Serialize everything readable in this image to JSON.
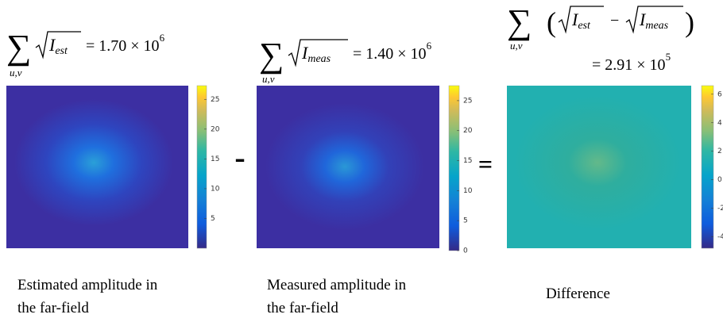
{
  "panels": [
    {
      "equation": {
        "sum": "∑",
        "sum_sub": "u,v",
        "var": "I",
        "var_sub": "est",
        "rhs": "= 1.70 × 10",
        "exponent": "6"
      },
      "colorbar": {
        "clim": [
          0,
          27.3
        ],
        "ticks": [
          5,
          10,
          15,
          20,
          25
        ]
      },
      "caption": [
        "Estimated amplitude in",
        "the far-field"
      ]
    },
    {
      "equation": {
        "sum": "∑",
        "sum_sub": "u,v",
        "var": "I",
        "var_sub": "meas",
        "rhs": "= 1.40 × 10",
        "exponent": "6"
      },
      "colorbar": {
        "clim": [
          0,
          27.5
        ],
        "ticks": [
          0,
          5,
          10,
          15,
          20,
          25
        ]
      },
      "caption": [
        "Measured amplitude in",
        "the far-field"
      ]
    },
    {
      "equation": {
        "sum": "∑",
        "sum_sub": "u,v",
        "open": "(",
        "var1": "I",
        "var1_sub": "est",
        "minus": "−",
        "var2": "I",
        "var2_sub": "meas",
        "close": ")",
        "rhs": "= 2.91 × 10",
        "exponent": "5"
      },
      "colorbar": {
        "clim": [
          -4.8,
          6.6
        ],
        "ticks": [
          -4,
          -2,
          0,
          2,
          4,
          6
        ]
      },
      "caption": [
        "Difference"
      ]
    }
  ],
  "operators": [
    "-",
    "="
  ]
}
